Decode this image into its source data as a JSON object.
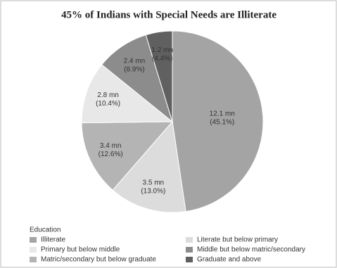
{
  "chart_data": {
    "type": "pie",
    "title": "45% of Indians with Special Needs are Illiterate",
    "legend_title": "Education",
    "categories": [
      "Illiterate",
      "Literate but below primary",
      "Matric/secondary but below graduate",
      "Primary but below middle",
      "Middle but below matric/secondary",
      "Graduate and above"
    ],
    "values": [
      12.1,
      3.5,
      3.4,
      2.8,
      2.4,
      1.2
    ],
    "value_labels": [
      "12.1 mn",
      "3.5 mn",
      "3.4 mn",
      "2.8 mn",
      "2.4 mn",
      "1.2 mn"
    ],
    "shares": [
      45.1,
      13.0,
      12.6,
      10.4,
      8.9,
      4.4
    ],
    "share_labels": [
      "(45.1%)",
      "(13.0%)",
      "(12.6%)",
      "(10.4%)",
      "(8.9%)",
      "(4.4%)"
    ],
    "colors": [
      "#a4a4a4",
      "#dcdcdc",
      "#b4b4b4",
      "#e8e8e8",
      "#8c8c8c",
      "#606060"
    ],
    "legend": "bottom"
  }
}
